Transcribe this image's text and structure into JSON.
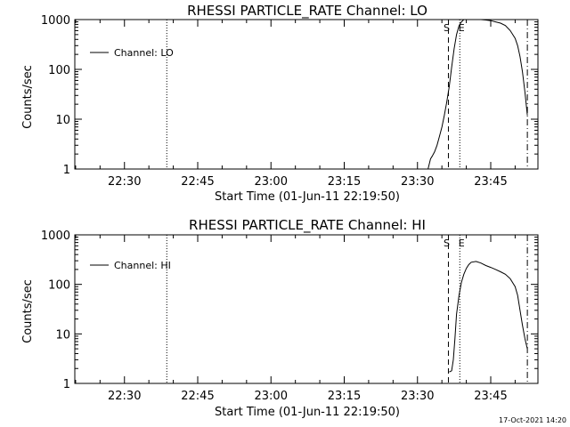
{
  "chart_data": [
    {
      "type": "line",
      "title": "RHESSI PARTICLE_RATE Channel: LO",
      "xlabel": "Start Time (01-Jun-11 22:19:50)",
      "ylabel": "Counts/sec",
      "yscale": "log",
      "xlim": [
        "22:19:50",
        "23:54:40"
      ],
      "ylim": [
        1,
        1000
      ],
      "x_ticks": [
        "22:30",
        "22:45",
        "23:00",
        "23:15",
        "23:30",
        "23:45"
      ],
      "y_ticks": [
        "1",
        "10",
        "100",
        "1000"
      ],
      "legend": {
        "placement": "top-left",
        "entries": [
          "Channel: LO"
        ]
      },
      "markers": {
        "start": "S",
        "end": "E"
      },
      "vertical_lines": [
        {
          "time": "22:38:40",
          "style": "dotted"
        },
        {
          "time": "23:36:20",
          "style": "dashed",
          "label": "S"
        },
        {
          "time": "23:38:40",
          "style": "dotted",
          "label": "E"
        },
        {
          "time": "23:52:30",
          "style": "dashdot"
        }
      ],
      "series": [
        {
          "name": "Channel: LO",
          "x": [
            "23:32:10",
            "23:32:40",
            "23:33:00",
            "23:33:30",
            "23:34:00",
            "23:34:30",
            "23:35:00",
            "23:35:30",
            "23:36:00",
            "23:36:30",
            "23:37:00",
            "23:37:30",
            "23:38:00",
            "23:38:30",
            "23:39:00",
            "23:39:30",
            "23:40:00",
            "23:40:30",
            "23:41:00",
            "23:42:00",
            "23:43:00",
            "23:44:00",
            "23:45:00",
            "23:46:00",
            "23:47:00",
            "23:48:00",
            "23:49:00",
            "23:50:00",
            "23:50:30",
            "23:51:00",
            "23:51:30",
            "23:52:00",
            "23:52:30"
          ],
          "y": [
            1,
            1.6,
            1.8,
            2.2,
            3,
            4.5,
            7,
            12,
            22,
            45,
            110,
            260,
            500,
            750,
            900,
            1000,
            1050,
            1050,
            1050,
            1020,
            1000,
            980,
            950,
            900,
            850,
            760,
            600,
            420,
            300,
            180,
            90,
            35,
            12
          ]
        }
      ]
    },
    {
      "type": "line",
      "title": "RHESSI PARTICLE_RATE Channel: HI",
      "xlabel": "Start Time (01-Jun-11 22:19:50)",
      "ylabel": "Counts/sec",
      "yscale": "log",
      "xlim": [
        "22:19:50",
        "23:54:40"
      ],
      "ylim": [
        1,
        1000
      ],
      "x_ticks": [
        "22:30",
        "22:45",
        "23:00",
        "23:15",
        "23:30",
        "23:45"
      ],
      "y_ticks": [
        "1",
        "10",
        "100",
        "1000"
      ],
      "legend": {
        "placement": "top-left",
        "entries": [
          "Channel: HI"
        ]
      },
      "markers": {
        "start": "S",
        "end": "E"
      },
      "vertical_lines": [
        {
          "time": "22:38:40",
          "style": "dotted"
        },
        {
          "time": "23:36:20",
          "style": "dashed",
          "label": "S"
        },
        {
          "time": "23:38:40",
          "style": "dotted",
          "label": "E"
        },
        {
          "time": "23:52:30",
          "style": "dashdot"
        }
      ],
      "series": [
        {
          "name": "Channel: HI",
          "x": [
            "23:36:30",
            "23:37:00",
            "23:37:20",
            "23:37:40",
            "23:38:00",
            "23:38:30",
            "23:39:00",
            "23:39:30",
            "23:40:00",
            "23:40:30",
            "23:41:00",
            "23:42:00",
            "23:43:00",
            "23:44:00",
            "23:45:00",
            "23:46:00",
            "23:47:00",
            "23:48:00",
            "23:49:00",
            "23:50:00",
            "23:50:30",
            "23:51:00",
            "23:51:30",
            "23:52:00",
            "23:52:30"
          ],
          "y": [
            1.7,
            1.8,
            3,
            8,
            25,
            60,
            110,
            160,
            210,
            250,
            280,
            290,
            270,
            240,
            220,
            200,
            180,
            160,
            130,
            90,
            60,
            30,
            15,
            8,
            5
          ]
        }
      ]
    }
  ],
  "footer": {
    "timestamp": "17-Oct-2021 14:20"
  }
}
